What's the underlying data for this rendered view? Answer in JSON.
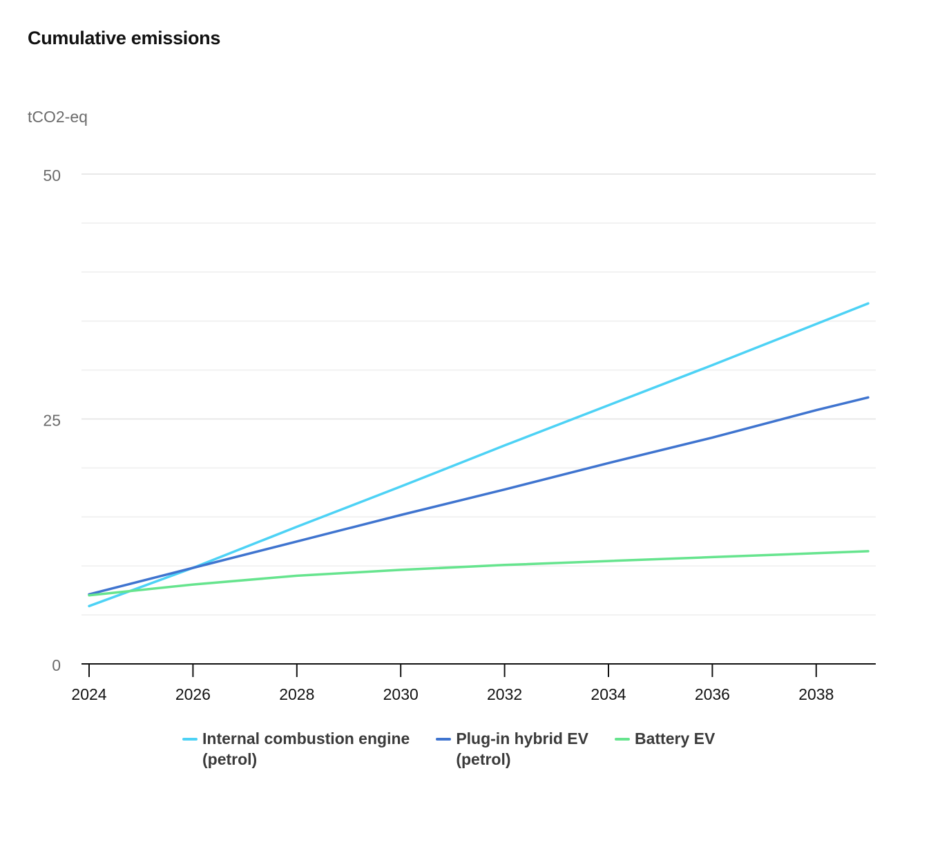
{
  "chart_data": {
    "type": "line",
    "title": "Cumulative emissions",
    "unit_label": "tCO2-eq",
    "xlabel": "",
    "ylabel": "tCO2-eq",
    "x_ticks": [
      "2024",
      "2026",
      "2028",
      "2030",
      "2032",
      "2034",
      "2036",
      "2038"
    ],
    "y_ticks": [
      "0",
      "25",
      "50"
    ],
    "xlim": [
      2024,
      2039
    ],
    "ylim": [
      0,
      50
    ],
    "grid": true,
    "legend_position": "bottom",
    "series": [
      {
        "name": "Internal combustion engine\n(petrol)",
        "color": "#4dd2f5",
        "x": [
          2024,
          2026,
          2028,
          2030,
          2032,
          2034,
          2036,
          2038,
          2039
        ],
        "y": [
          5.9,
          9.8,
          14.0,
          18.1,
          22.3,
          26.4,
          30.5,
          34.7,
          36.8
        ]
      },
      {
        "name": "Plug-in hybrid EV\n(petrol)",
        "color": "#3f74cf",
        "x": [
          2024,
          2026,
          2028,
          2030,
          2032,
          2034,
          2036,
          2038,
          2039
        ],
        "y": [
          7.1,
          9.8,
          12.5,
          15.2,
          17.8,
          20.5,
          23.1,
          25.9,
          27.2
        ]
      },
      {
        "name": "Battery EV",
        "color": "#66e48e",
        "x": [
          2024,
          2026,
          2028,
          2030,
          2032,
          2034,
          2036,
          2038,
          2039
        ],
        "y": [
          7.0,
          8.1,
          9.0,
          9.6,
          10.1,
          10.5,
          10.9,
          11.3,
          11.5
        ]
      }
    ]
  }
}
